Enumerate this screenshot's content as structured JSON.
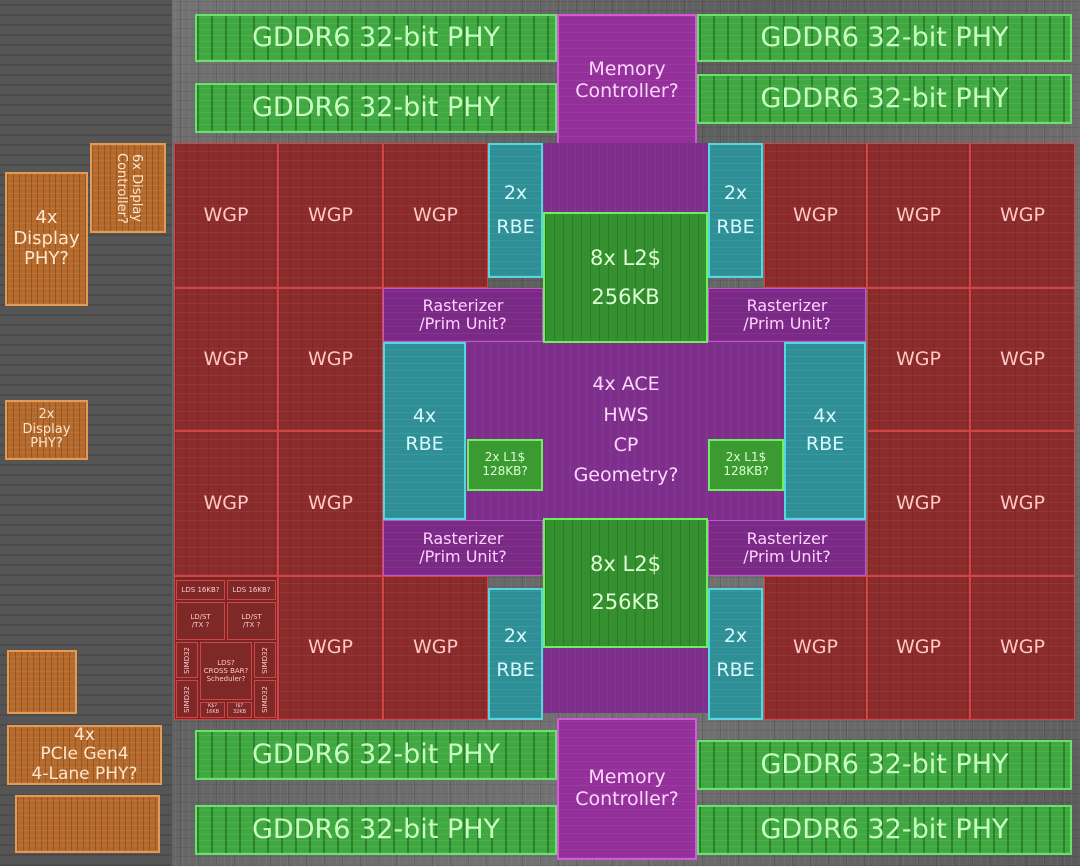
{
  "labels": {
    "phy": "GDDR6 32-bit PHY",
    "mc_line1": "Memory",
    "mc_line2": "Controller?",
    "wgp": "WGP",
    "rbe2_line1": "2x",
    "rbe2_line2": "RBE",
    "rbe4_line1": "4x",
    "rbe4_line2": "RBE",
    "l2_line1": "8x L2$",
    "l2_line2": "256KB",
    "l1_line1": "2x L1$",
    "l1_line2": "128KB?",
    "rast_line1": "Rasterizer",
    "rast_line2": "/Prim Unit?",
    "center_line1": "4x ACE",
    "center_line2": "HWS",
    "center_line3": "CP",
    "center_line4": "Geometry?",
    "disp4_line1": "4x",
    "disp4_line2": "Display",
    "disp4_line3": "PHY?",
    "disp6_line1": "6x",
    "disp6_line2": "Display",
    "disp6_line3": "Controller?",
    "disp2_line1": "2x",
    "disp2_line2": "Display",
    "disp2_line3": "PHY?",
    "pcie_line1": "4x",
    "pcie_line2": "PCIe Gen4",
    "pcie_line3": "4-Lane PHY?",
    "wgpd_lds": "LDS 16KB?",
    "wgpd_ldst": "LD/ST",
    "wgpd_tx": "/TX ?",
    "wgpd_simd": "SIMD32",
    "wgpd_lds2": "LDS?",
    "wgpd_xbar": "CROSS BAR?",
    "wgpd_sched": "Scheduler?",
    "wgpd_ki": "K$?",
    "wgpd_ki_size": "16KB",
    "wgpd_ii": "I$?",
    "wgpd_ii_size": "32KB"
  },
  "colors": {
    "phy": "#3fa840",
    "memory_controller": "#93309a",
    "wgp": "#8c2b2b",
    "rbe": "#2e8f96",
    "l2": "#35902f",
    "io": "#b56a2c"
  }
}
